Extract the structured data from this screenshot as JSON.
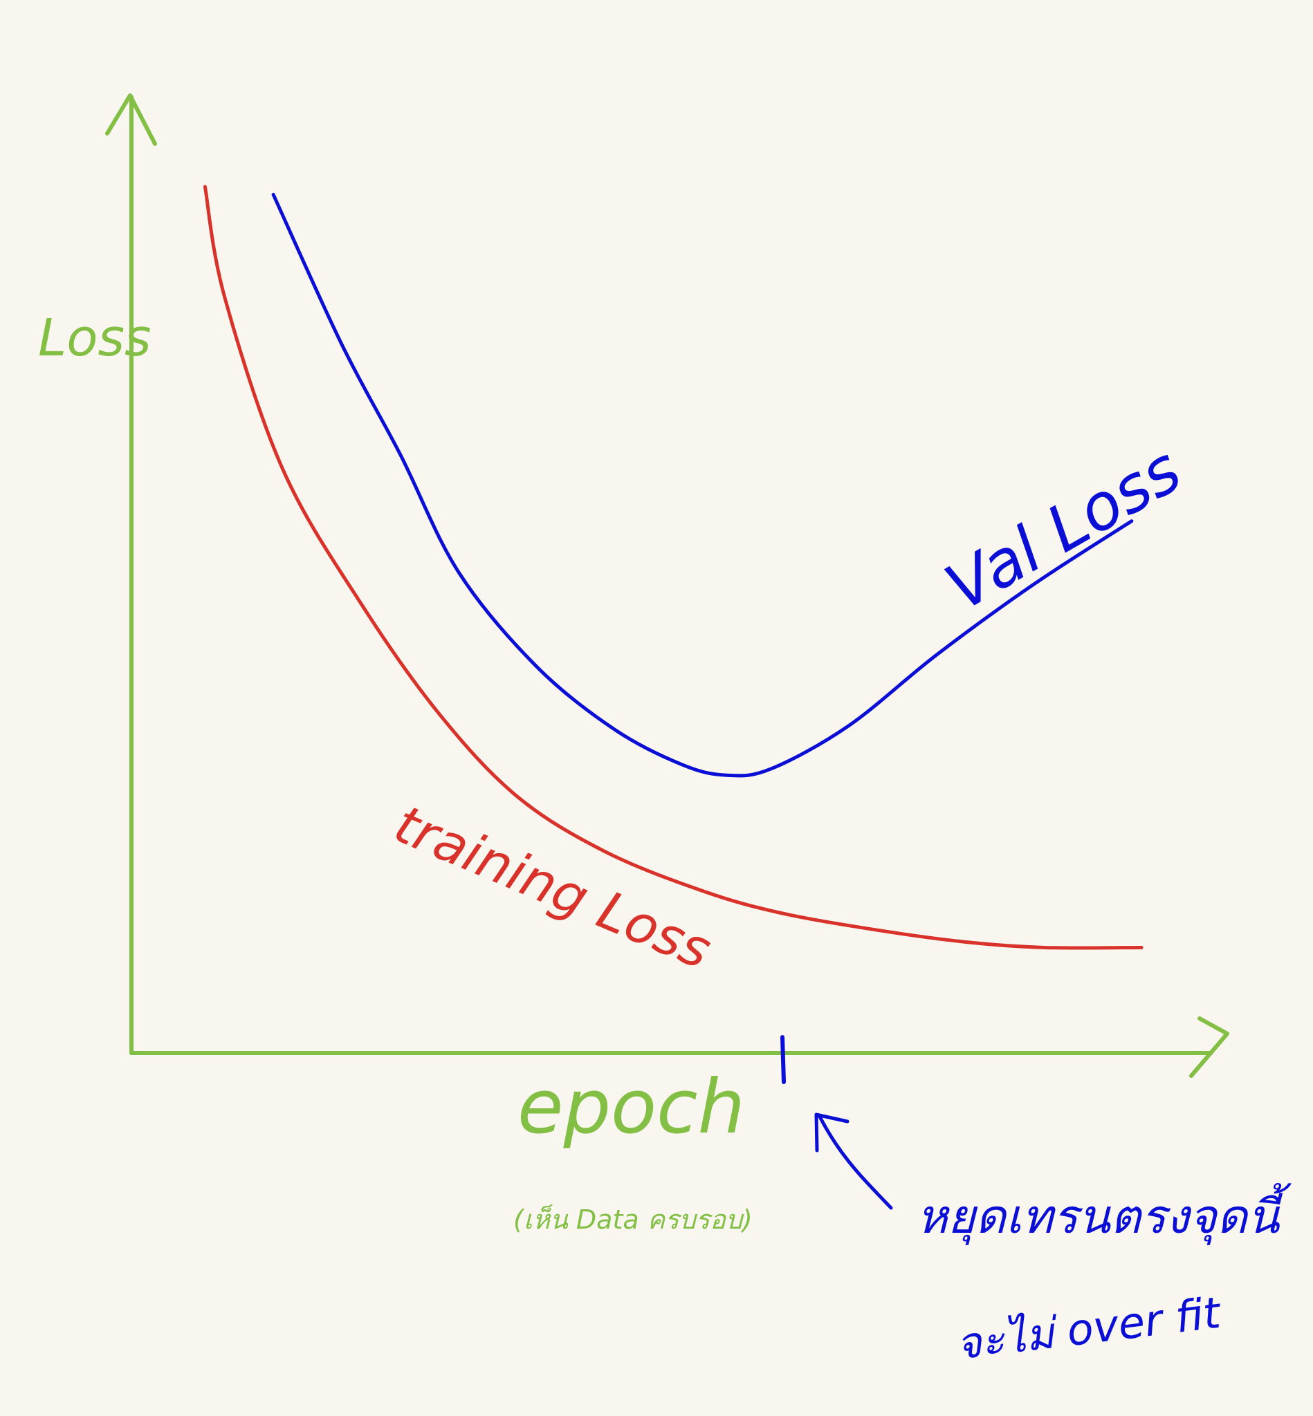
{
  "chart_data": {
    "type": "line",
    "xlabel": "epoch",
    "xlabel_note": "(เห็น Data ครบรอบ)",
    "ylabel": "Loss",
    "grid": false,
    "series": [
      {
        "name": "training Loss",
        "color": "#d9322b",
        "points": [
          [
            0.04,
            1.0
          ],
          [
            0.06,
            0.86
          ],
          [
            0.12,
            0.64
          ],
          [
            0.2,
            0.47
          ],
          [
            0.28,
            0.33
          ],
          [
            0.36,
            0.225
          ],
          [
            0.45,
            0.155
          ],
          [
            0.55,
            0.105
          ],
          [
            0.63,
            0.077
          ],
          [
            0.73,
            0.055
          ],
          [
            0.82,
            0.04
          ],
          [
            0.9,
            0.033
          ],
          [
            1.0,
            0.033
          ]
        ]
      },
      {
        "name": "Val Loss",
        "color": "#0b0fd6",
        "points": [
          [
            0.11,
            0.99
          ],
          [
            0.18,
            0.8
          ],
          [
            0.24,
            0.66
          ],
          [
            0.3,
            0.51
          ],
          [
            0.38,
            0.39
          ],
          [
            0.46,
            0.31
          ],
          [
            0.53,
            0.265
          ],
          [
            0.575,
            0.252
          ],
          [
            0.62,
            0.26
          ],
          [
            0.7,
            0.315
          ],
          [
            0.79,
            0.405
          ],
          [
            0.89,
            0.495
          ],
          [
            0.99,
            0.575
          ]
        ]
      }
    ],
    "annotations": {
      "marker_x": 0.6,
      "marker_text_line1": "หยุดเทรนตรงจุดนี้",
      "marker_text_line2": "จะไม่ over fit"
    }
  },
  "colors": {
    "background": "#f8f6ee",
    "axis": "#83bf45",
    "train": "#d9322b",
    "val": "#0b0fd6"
  }
}
